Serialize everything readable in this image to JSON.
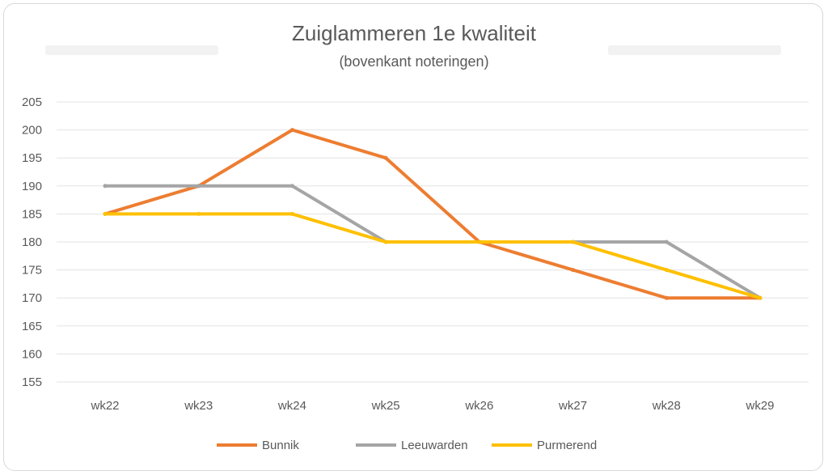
{
  "chart_data": {
    "type": "line",
    "title": "Zuiglammeren 1e kwaliteit",
    "subtitle": "(bovenkant noteringen)",
    "categories": [
      "wk22",
      "wk23",
      "wk24",
      "wk25",
      "wk26",
      "wk27",
      "wk28",
      "wk29"
    ],
    "ylim": [
      155,
      205
    ],
    "ytick_step": 5,
    "grid": true,
    "legend_position": "bottom",
    "series": [
      {
        "name": "Bunnik",
        "color": "#ed7d31",
        "values": [
          185,
          190,
          200,
          195,
          180,
          175,
          170,
          170
        ]
      },
      {
        "name": "Leeuwarden",
        "color": "#a5a5a5",
        "values": [
          190,
          190,
          190,
          180,
          180,
          180,
          180,
          170
        ]
      },
      {
        "name": "Purmerend",
        "color": "#ffc000",
        "values": [
          185,
          185,
          185,
          180,
          180,
          180,
          175,
          170
        ]
      }
    ]
  }
}
